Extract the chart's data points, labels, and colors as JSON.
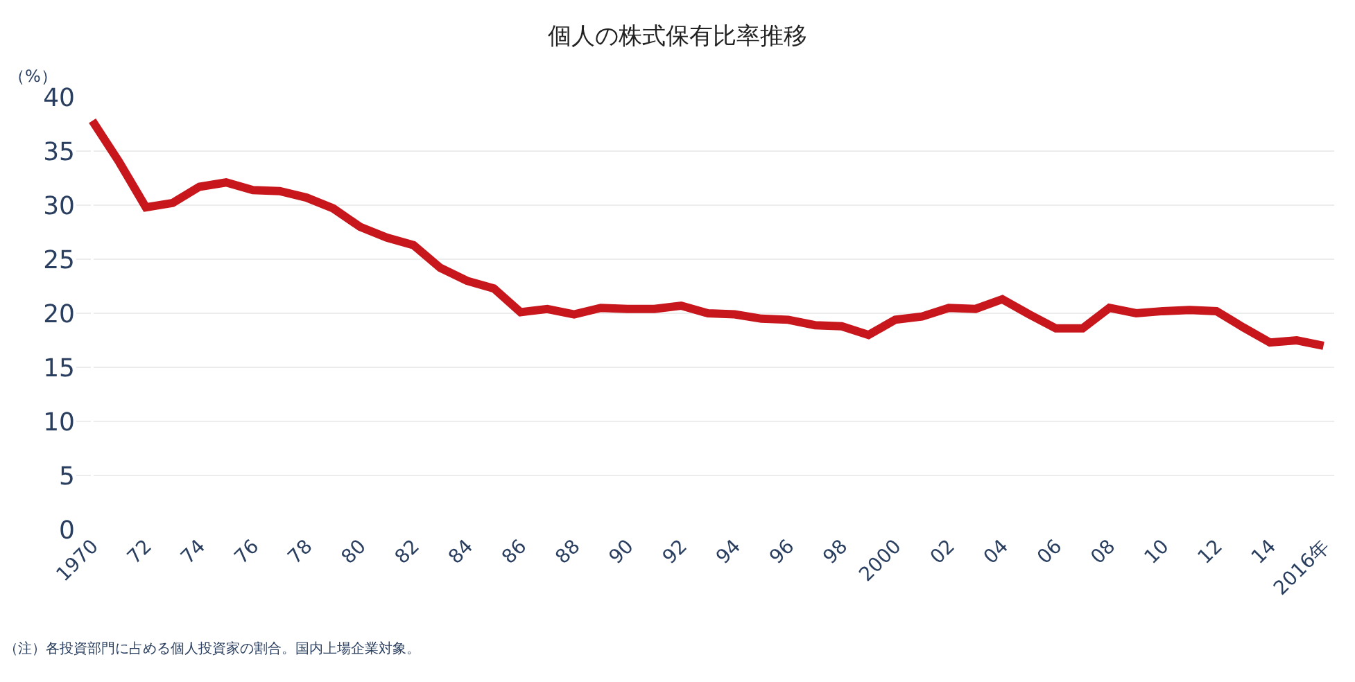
{
  "chart_data": {
    "type": "line",
    "title": "個人の株式保有比率推移",
    "ylabel": "（%）",
    "categories": [
      "1970",
      null,
      "72",
      null,
      "74",
      null,
      "76",
      null,
      "78",
      null,
      "80",
      null,
      "82",
      null,
      "84",
      null,
      "86",
      null,
      "88",
      null,
      "90",
      null,
      "92",
      null,
      "94",
      null,
      "96",
      null,
      "98",
      null,
      "2000",
      null,
      "02",
      null,
      "04",
      null,
      "06",
      null,
      "08",
      null,
      "10",
      null,
      "12",
      null,
      "14",
      null,
      "2016年"
    ],
    "series": [
      {
        "color": "#c8161d",
        "values": [
          37.8,
          34.0,
          29.8,
          30.2,
          31.7,
          32.1,
          31.4,
          31.3,
          30.7,
          29.7,
          28.0,
          27.0,
          26.3,
          24.2,
          23.0,
          22.3,
          20.1,
          20.4,
          19.9,
          20.5,
          20.4,
          20.4,
          20.7,
          20.0,
          19.9,
          19.5,
          19.4,
          18.9,
          18.8,
          18.0,
          19.4,
          19.7,
          20.5,
          20.4,
          21.3,
          19.9,
          18.6,
          18.6,
          20.5,
          20.0,
          20.2,
          20.3,
          20.2,
          18.7,
          17.3,
          17.5,
          17.0
        ]
      }
    ],
    "ylim": [
      0,
      40
    ],
    "yticks": [
      0,
      5,
      10,
      15,
      20,
      25,
      30,
      35,
      40
    ],
    "grid": "y",
    "marker": "none",
    "line_style": "solid",
    "annotations": [
      "（注）各投資部門に占める個人投資家の割合。国内上場企業対象。"
    ]
  }
}
